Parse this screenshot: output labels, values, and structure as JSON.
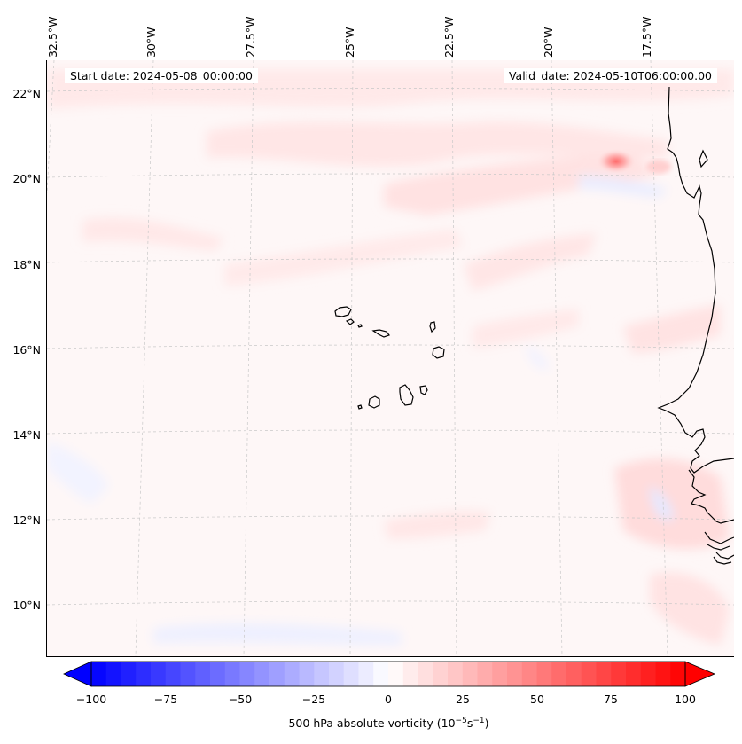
{
  "map": {
    "start_date": "Start date: 2024-05-08_00:00:00",
    "valid_date": "Valid_date: 2024-05-10T06:00:00.00",
    "lon_labels": [
      "32.5°W",
      "30°W",
      "27.5°W",
      "25°W",
      "22.5°W",
      "20°W",
      "17.5°W"
    ],
    "lat_labels": [
      "22°N",
      "20°N",
      "18°N",
      "16°N",
      "14°N",
      "12°N",
      "10°N"
    ],
    "coastline": "Cape Verde islands and West African coast (Mauritania, Senegal)",
    "field": "500 hPa absolute vorticity"
  },
  "colorbar": {
    "ticks": [
      "−100",
      "−75",
      "−50",
      "−25",
      "0",
      "25",
      "50",
      "75",
      "100"
    ],
    "values": [
      -100,
      -75,
      -50,
      -25,
      0,
      25,
      50,
      75,
      100
    ],
    "label": "500 hPa absolute vorticity (10",
    "label_exp1": "−5",
    "label_mid": "s",
    "label_exp2": "−1",
    "label_end": ")",
    "min_color": "#0000ff",
    "mid_color": "#ffffff",
    "max_color": "#ff0000",
    "extend": "both"
  }
}
